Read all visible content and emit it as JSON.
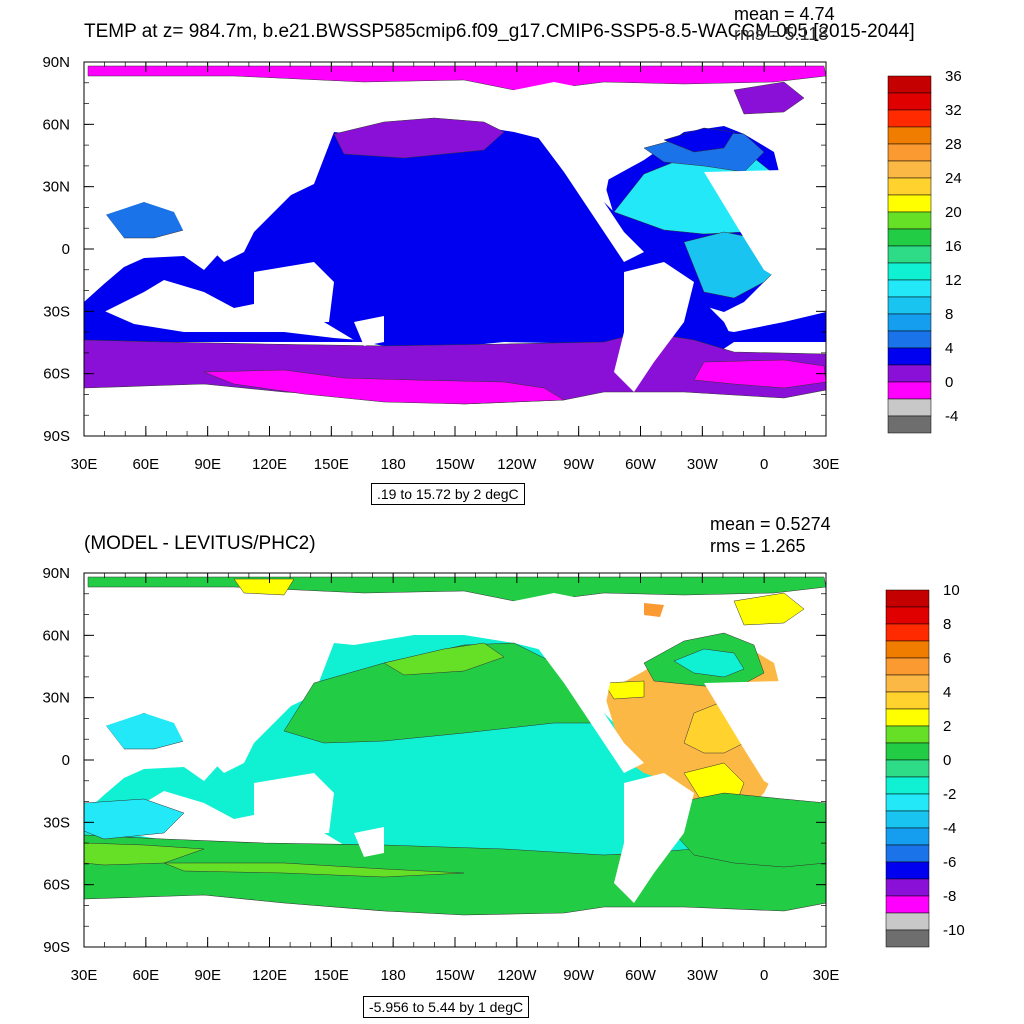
{
  "panel_top": {
    "title": "TEMP at z= 984.7m, b.e21.BWSSP585cmip6.f09_g17.CMIP6-SSP5-8.5-WACCM.005 [2015-2044]",
    "mean_text": "mean = 4.74",
    "rms_text": "rms = 5.118",
    "contour_info": ".19 to 15.72 by 2 degC",
    "colorbar": {
      "labels": [
        "36",
        "32",
        "28",
        "24",
        "20",
        "16",
        "12",
        "8",
        "4",
        "0",
        "-4"
      ],
      "colors": [
        "#c40000",
        "#e00000",
        "#ff2a00",
        "#f07d00",
        "#fa9a30",
        "#fbb845",
        "#ffd22e",
        "#ffff00",
        "#66e026",
        "#22cc44",
        "#2edc88",
        "#10f0d2",
        "#22e8f8",
        "#1ac4f0",
        "#159df0",
        "#1a73e8",
        "#0000f0",
        "#8a10d8",
        "#ff00ff",
        "#c8c8c8",
        "#6e6e6e"
      ]
    },
    "x_ticks": [
      "30E",
      "60E",
      "90E",
      "120E",
      "150E",
      "180",
      "150W",
      "120W",
      "90W",
      "60W",
      "30W",
      "0",
      "30E"
    ],
    "y_ticks": [
      "90N",
      "60N",
      "30N",
      "0",
      "30S",
      "60S",
      "90S"
    ]
  },
  "panel_bottom": {
    "title": "(MODEL - LEVITUS/PHC2)",
    "mean_text": "mean = 0.5274",
    "rms_text": "rms = 1.265",
    "contour_info": "-5.956 to 5.44 by 1 degC",
    "colorbar": {
      "labels": [
        "10",
        "8",
        "6",
        "4",
        "2",
        "0",
        "-2",
        "-4",
        "-6",
        "-8",
        "-10"
      ],
      "colors": [
        "#c40000",
        "#e00000",
        "#ff2a00",
        "#f07d00",
        "#fa9a30",
        "#fbb845",
        "#ffd22e",
        "#ffff00",
        "#66e026",
        "#22cc44",
        "#2edc88",
        "#10f0d2",
        "#22e8f8",
        "#1ac4f0",
        "#159df0",
        "#1a73e8",
        "#0000f0",
        "#8a10d8",
        "#ff00ff",
        "#c8c8c8",
        "#6e6e6e"
      ]
    },
    "x_ticks": [
      "30E",
      "60E",
      "90E",
      "120E",
      "150E",
      "180",
      "150W",
      "120W",
      "90W",
      "60W",
      "30W",
      "0",
      "30E"
    ],
    "y_ticks": [
      "90N",
      "60N",
      "30N",
      "0",
      "30S",
      "60S",
      "90S"
    ]
  }
}
